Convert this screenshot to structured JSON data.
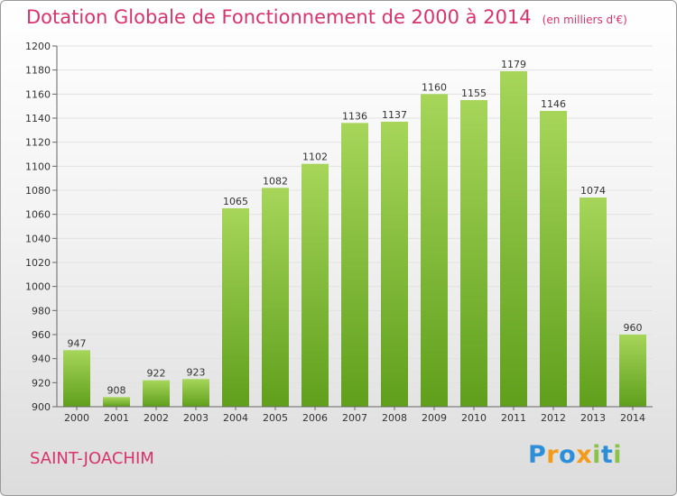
{
  "header": {
    "title": "Dotation Globale de Fonctionnement de 2000 à 2014",
    "unit": "(en milliers d'€)"
  },
  "footer": {
    "town": "SAINT-JOACHIM",
    "logo_letters": [
      "P",
      "r",
      "o",
      "x",
      "i",
      "t",
      "i"
    ]
  },
  "colors": {
    "title": "#d8336d",
    "bar_light": "#a6d55a",
    "bar_dark": "#5f9f1c",
    "logo": [
      "#2d8fd8",
      "#f29a1b",
      "#2d8fd8",
      "#f29a1b",
      "#8bc34a",
      "#2d8fd8",
      "#8bc34a"
    ]
  },
  "chart_data": {
    "type": "bar",
    "title": "Dotation Globale de Fonctionnement de 2000 à 2014",
    "subtitle": "(en milliers d'€)",
    "categories": [
      "2000",
      "2001",
      "2002",
      "2003",
      "2004",
      "2005",
      "2006",
      "2007",
      "2008",
      "2009",
      "2010",
      "2011",
      "2012",
      "2013",
      "2014"
    ],
    "values": [
      947,
      908,
      922,
      923,
      1065,
      1082,
      1102,
      1136,
      1137,
      1160,
      1155,
      1179,
      1146,
      1074,
      960
    ],
    "ylim": [
      900,
      1200
    ],
    "yticks": [
      900,
      920,
      940,
      960,
      980,
      1000,
      1020,
      1040,
      1060,
      1080,
      1100,
      1120,
      1140,
      1160,
      1180,
      1200
    ],
    "grid": true,
    "legend": "none"
  }
}
